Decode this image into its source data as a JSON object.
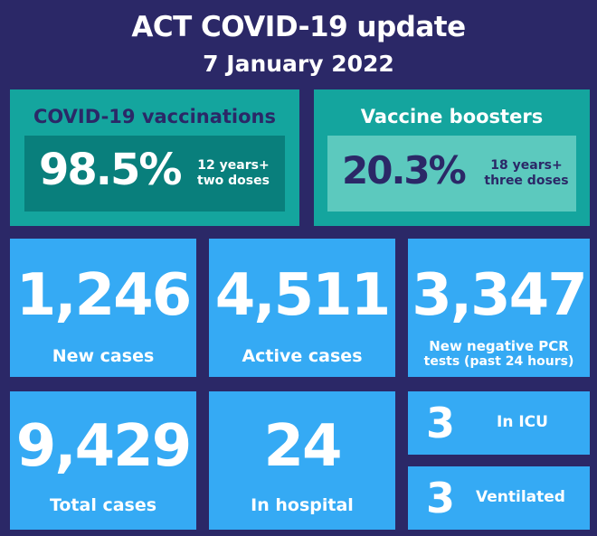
{
  "header": {
    "title": "ACT COVID-19 update",
    "date": "7 January 2022"
  },
  "vaccinations": {
    "title": "COVID-19 vaccinations",
    "percent": "98.5%",
    "note_line1": "12 years+",
    "note_line2": "two doses"
  },
  "boosters": {
    "title": "Vaccine boosters",
    "percent": "20.3%",
    "note_line1": "18 years+",
    "note_line2": "three doses"
  },
  "stats": {
    "new_cases": {
      "value": "1,246",
      "label": "New cases"
    },
    "active_cases": {
      "value": "4,511",
      "label": "Active cases"
    },
    "negative_tests": {
      "value": "3,347",
      "label_line1": "New negative PCR",
      "label_line2": "tests (past 24 hours)"
    },
    "total_cases": {
      "value": "9,429",
      "label": "Total cases"
    },
    "in_hospital": {
      "value": "24",
      "label": "In hospital"
    },
    "in_icu": {
      "value": "3",
      "label": "In ICU"
    },
    "ventilated": {
      "value": "3",
      "label": "Ventilated"
    }
  },
  "colors": {
    "background": "#2b2867",
    "vaccination_panel": "#14a59e",
    "vaccination_inner": "#097f7c",
    "booster_inner": "#5cc9be",
    "stat_tile": "#35aaf4",
    "title_navy": "#2b2867"
  }
}
